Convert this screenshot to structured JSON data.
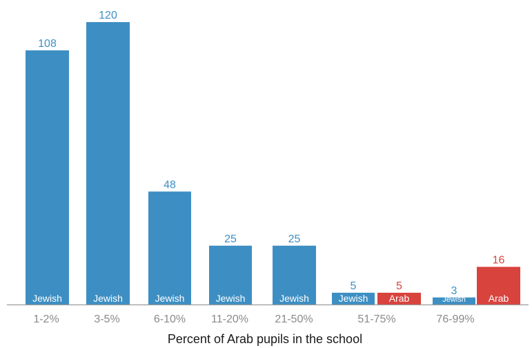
{
  "chart_data": {
    "type": "bar",
    "xlabel": "Percent of Arab pupils in the school",
    "ylabel": "",
    "ylim": [
      0,
      120
    ],
    "grid": false,
    "colors": {
      "Jewish": "#3d8fc3",
      "Arab": "#d9433e"
    },
    "categories": [
      "1-2%",
      "3-5%",
      "6-10%",
      "11-20%",
      "21-50%",
      "51-75%",
      "76-99%"
    ],
    "series": [
      {
        "name": "Jewish",
        "values": [
          108,
          120,
          48,
          25,
          25,
          5,
          3
        ]
      },
      {
        "name": "Arab",
        "values": [
          null,
          null,
          null,
          null,
          null,
          5,
          16
        ]
      }
    ]
  }
}
